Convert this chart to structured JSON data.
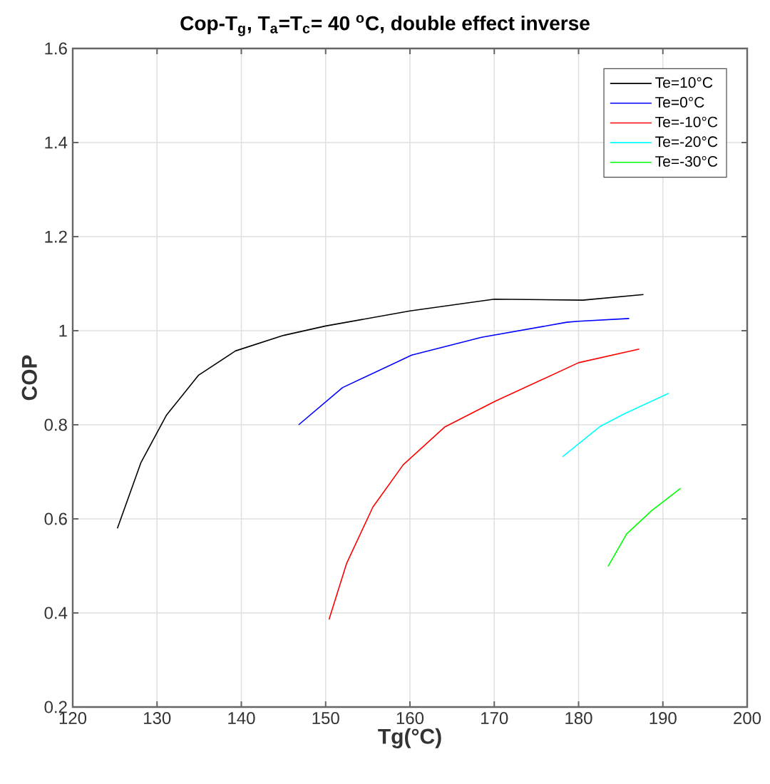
{
  "chart_data": {
    "type": "line",
    "title": "Cop-T$_{g}$, T$_{a}$=T$_{c}$= 40 $^{o}$C, double effect inverse",
    "xlabel": "Tg(°C)",
    "ylabel": "COP",
    "xlim": [
      120,
      200
    ],
    "xticks": [
      120,
      130,
      140,
      150,
      160,
      170,
      180,
      190,
      200
    ],
    "ylim": [
      0.2,
      1.6
    ],
    "yticks": [
      0.2,
      0.4,
      0.6,
      0.8,
      1,
      1.2,
      1.4,
      1.6
    ],
    "grid": true,
    "legend": "top right",
    "marker": "none",
    "line_style": "solid",
    "series": [
      {
        "name": "Te=10°C",
        "color": "#000000",
        "x": [
          125.3,
          128.1,
          131.1,
          134.9,
          139.3,
          145,
          150,
          160,
          170,
          180.5,
          187.7
        ],
        "values": [
          0.58,
          0.72,
          0.82,
          0.905,
          0.957,
          0.99,
          1.01,
          1.042,
          1.067,
          1.065,
          1.077
        ]
      },
      {
        "name": "Te=0°C",
        "color": "#0000ff",
        "x": [
          146.8,
          152,
          160.2,
          168.5,
          178.6,
          180,
          186
        ],
        "values": [
          0.8,
          0.879,
          0.948,
          0.986,
          1.018,
          1.02,
          1.026
        ]
      },
      {
        "name": "Te=-10°C",
        "color": "#ff0000",
        "x": [
          150.4,
          152.5,
          155.6,
          159.2,
          164.1,
          170.1,
          180,
          187.2
        ],
        "values": [
          0.386,
          0.506,
          0.625,
          0.715,
          0.795,
          0.85,
          0.932,
          0.961
        ]
      },
      {
        "name": "Te=-20°C",
        "color": "#00ffff",
        "x": [
          178.1,
          182.6,
          185.4,
          190.7
        ],
        "values": [
          0.732,
          0.797,
          0.823,
          0.867
        ]
      },
      {
        "name": "Te=-30°C",
        "color": "#00ff00",
        "x": [
          183.5,
          185.7,
          188.7,
          192.1
        ],
        "values": [
          0.499,
          0.568,
          0.618,
          0.665
        ]
      }
    ]
  }
}
